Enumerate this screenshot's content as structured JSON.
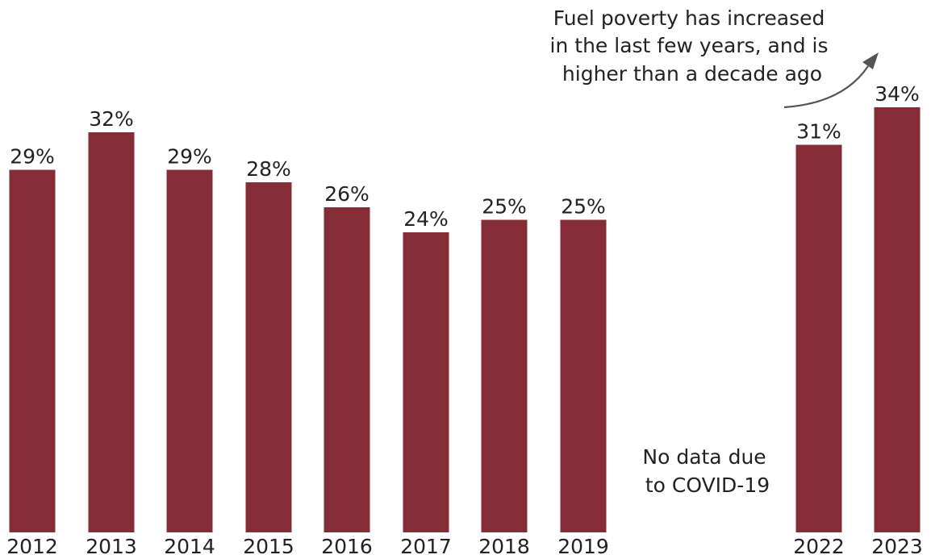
{
  "chart_data": {
    "type": "bar",
    "categories": [
      "2012",
      "2013",
      "2014",
      "2015",
      "2016",
      "2017",
      "2018",
      "2019",
      "2022",
      "2023"
    ],
    "values": [
      29,
      32,
      29,
      28,
      26,
      24,
      25,
      25,
      31,
      34
    ],
    "value_labels": [
      "29%",
      "32%",
      "29%",
      "28%",
      "26%",
      "24%",
      "25%",
      "25%",
      "31%",
      "34%"
    ],
    "unit": "%",
    "title": "",
    "xlabel": "",
    "ylabel": "",
    "grid": false,
    "color": "#852d37",
    "annotations": {
      "gap_note": [
        "No data due",
        "to COVID-19"
      ],
      "trend_note": [
        "Fuel poverty has increased",
        "in the last few years, and is",
        "higher than a decade ago"
      ]
    }
  }
}
